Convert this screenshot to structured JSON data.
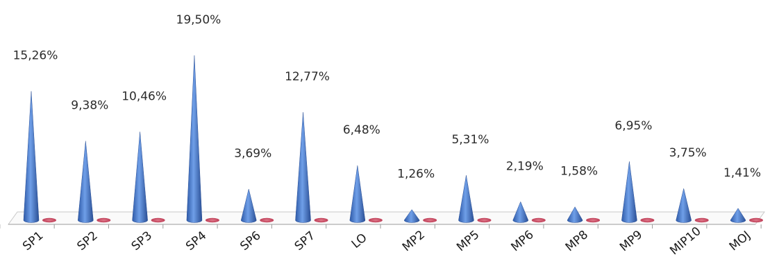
{
  "chart_data": {
    "type": "bar",
    "style": "3d-cone",
    "categories": [
      "SP1",
      "SP2",
      "SP3",
      "SP4",
      "SP6",
      "SP7",
      "LO",
      "MP2",
      "MP5",
      "MP6",
      "MP8",
      "MP9",
      "MIP10",
      "MOJ"
    ],
    "series": [
      {
        "color": "#4f7fcf",
        "values": [
          15.26,
          9.38,
          10.46,
          19.5,
          3.69,
          12.77,
          6.48,
          1.26,
          5.31,
          2.19,
          1.58,
          6.95,
          3.75,
          1.41
        ],
        "labels": [
          "15,26%",
          "9,38%",
          "10,46%",
          "19,50%",
          "3,69%",
          "12,77%",
          "6,48%",
          "1,26%",
          "5,31%",
          "2,19%",
          "1,58%",
          "6,95%",
          "3,75%",
          "1,41%"
        ]
      },
      {
        "color": "#c0435a",
        "values": [
          0,
          0,
          0,
          0,
          0,
          0,
          0,
          0,
          0,
          0,
          0,
          0,
          0,
          0
        ]
      }
    ],
    "ylim": [
      0,
      19.5
    ],
    "grid": false,
    "legend": "none"
  }
}
